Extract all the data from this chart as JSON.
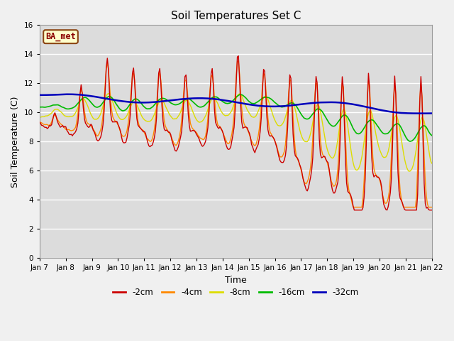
{
  "title": "Soil Temperatures Set C",
  "xlabel": "Time",
  "ylabel": "Soil Temperature (C)",
  "ylim": [
    0,
    16
  ],
  "yticks": [
    0,
    2,
    4,
    6,
    8,
    10,
    12,
    14,
    16
  ],
  "bg_color": "#dcdcdc",
  "plot_bg": "#dcdcdc",
  "legend_label": "BA_met",
  "series_colors": {
    "-2cm": "#cc0000",
    "-4cm": "#ff8800",
    "-8cm": "#dddd00",
    "-16cm": "#00bb00",
    "-32cm": "#0000bb"
  },
  "series_labels": [
    "-2cm",
    "-4cm",
    "-8cm",
    "-16cm",
    "-32cm"
  ],
  "x_tick_labels": [
    "Jan 7",
    "Jan 8",
    "Jan 9",
    "Jan 10",
    "Jan 11",
    "Jan 12",
    "Jan 13",
    "Jan 14",
    "Jan 15",
    "Jan 16",
    "Jan 17",
    "Jan 18",
    "Jan 19",
    "Jan 20",
    "Jan 21",
    "Jan 22"
  ]
}
